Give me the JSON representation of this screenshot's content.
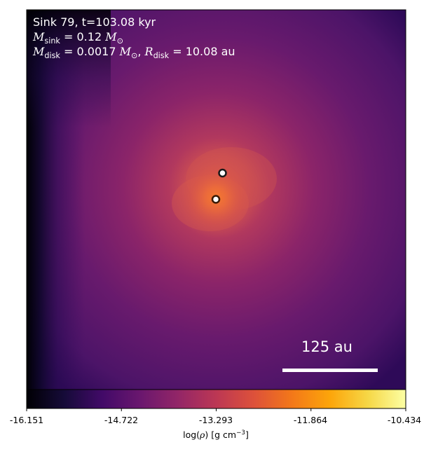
{
  "info": {
    "sink_line": "Sink 79, t=103.08 kyr",
    "mass_symbol": "M",
    "mass_sub": "sink",
    "mass_value": "= 0.12",
    "mass_unit": "M",
    "mass_unit_sub": "⊙",
    "disk_symbol": "M",
    "disk_sub": "disk",
    "disk_value": "= 0.0017",
    "disk_unit": "M",
    "disk_unit_sub": "⊙",
    "radius_symbol": "R",
    "radius_sub": "disk",
    "radius_value": "= 10.08 au"
  },
  "scalebar": {
    "label": "125 au"
  },
  "colorbar": {
    "ticks": [
      "-16.151",
      "-14.722",
      "-13.293",
      "-11.864",
      "-10.434"
    ],
    "label_prefix": "log(",
    "label_rho": "ρ",
    "label_mid": ") [g cm",
    "label_exp": "−3",
    "label_suffix": "]",
    "colormap": "inferno"
  },
  "sinks": [
    {
      "name": "sink-upper",
      "ring_color": "#1a1a1a"
    },
    {
      "name": "sink-lower",
      "ring_color": "#c85a00"
    }
  ]
}
